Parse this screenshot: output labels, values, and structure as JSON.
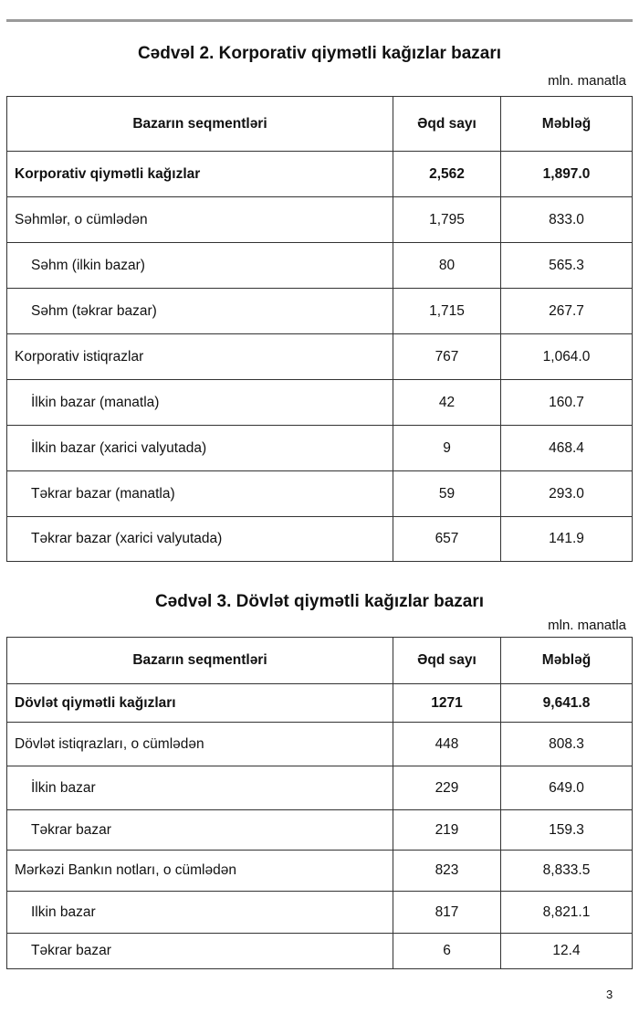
{
  "table2": {
    "title": "Cədvəl 2. Korporativ qiymətli kağızlar bazarı",
    "unit": "mln. manatla",
    "headers": [
      "Bazarın seqmentləri",
      "Əqd sayı",
      "Məbləğ"
    ],
    "rows": [
      {
        "label": "Korporativ qiymətli kağızlar",
        "count": "2,562",
        "amount": "1,897.0"
      },
      {
        "label": "Səhmlər, o cümlədən",
        "count": "1,795",
        "amount": "833.0"
      },
      {
        "label": "Səhm (ilkin bazar)",
        "count": "80",
        "amount": "565.3"
      },
      {
        "label": "Səhm (təkrar bazar)",
        "count": "1,715",
        "amount": "267.7"
      },
      {
        "label": "Korporativ istiqrazlar",
        "count": "767",
        "amount": "1,064.0"
      },
      {
        "label": "İlkin bazar (manatla)",
        "count": "42",
        "amount": "160.7"
      },
      {
        "label": "İlkin bazar (xarici valyutada)",
        "count": "9",
        "amount": "468.4"
      },
      {
        "label": "Təkrar bazar (manatla)",
        "count": "59",
        "amount": "293.0"
      },
      {
        "label": "Təkrar bazar (xarici valyutada)",
        "count": "657",
        "amount": "141.9"
      }
    ]
  },
  "table3": {
    "title": "Cədvəl 3. Dövlət qiymətli kağızlar bazarı",
    "unit": "mln. manatla",
    "headers": [
      "Bazarın seqmentləri",
      "Əqd sayı",
      "Məbləğ"
    ],
    "rows": [
      {
        "label": "Dövlət qiymətli kağızları",
        "count": "1271",
        "amount": "9,641.8"
      },
      {
        "label": "Dövlət istiqrazları, o cümlədən",
        "count": "448",
        "amount": "808.3"
      },
      {
        "label": "İlkin bazar",
        "count": "229",
        "amount": "649.0"
      },
      {
        "label": "Təkrar bazar",
        "count": "219",
        "amount": "159.3"
      },
      {
        "label": "Mərkəzi Bankın notları, o cümlədən",
        "count": "823",
        "amount": "8,833.5"
      },
      {
        "label": "Ilkin bazar",
        "count": "817",
        "amount": "8,821.1"
      },
      {
        "label": "Təkrar bazar",
        "count": "6",
        "amount": "12.4"
      }
    ]
  },
  "page_number": "3"
}
